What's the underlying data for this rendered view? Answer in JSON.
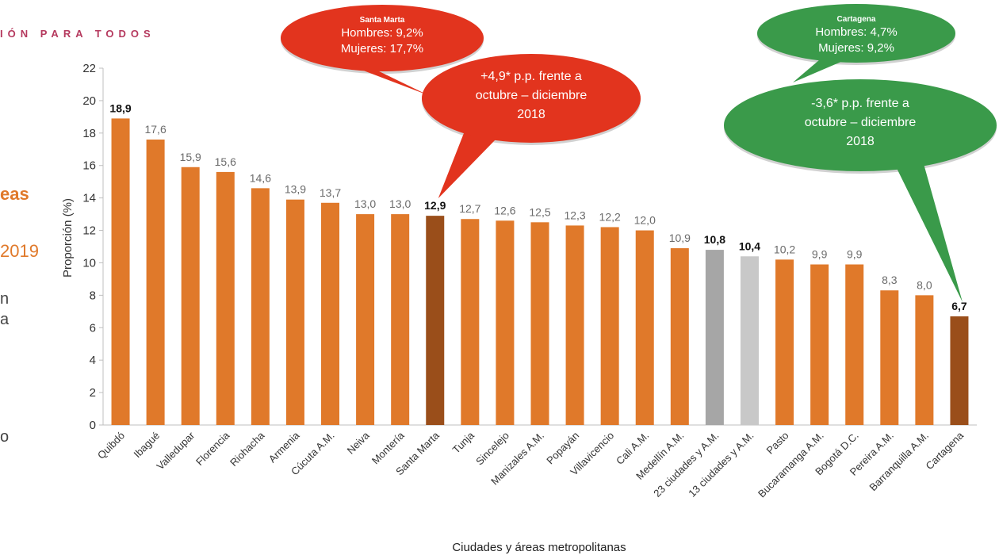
{
  "header": {
    "text": "IÓN PARA TODOS"
  },
  "left_fragments": {
    "heading": "eas",
    "year": "2019",
    "line1": "n",
    "line2": "a",
    "line3": "o"
  },
  "chart_data": {
    "type": "bar",
    "xlabel": "Ciudades y áreas metropolitanas",
    "ylabel": "Proporción (%)",
    "ylim": [
      0,
      22
    ],
    "yticks": [
      0,
      2,
      4,
      6,
      8,
      10,
      12,
      14,
      16,
      18,
      20,
      22
    ],
    "grid": false,
    "categories": [
      "Quibdó",
      "Ibagué",
      "Valledupar",
      "Florencia",
      "Riohacha",
      "Armenia",
      "Cúcuta A.M.",
      "Neiva",
      "Montería",
      "Santa Marta",
      "Tunja",
      "Sincelejo",
      "Manizales A.M.",
      "Popayán",
      "Villavicencio",
      "Cali A.M.",
      "Medellín A.M.",
      "23 ciudades y A.M.",
      "13 ciudades y A.M.",
      "Pasto",
      "Bucaramanga A.M.",
      "Bogotá D.C.",
      "Pereira A.M.",
      "Barranquilla A.M.",
      "Cartagena"
    ],
    "values": [
      18.9,
      17.6,
      15.9,
      15.6,
      14.6,
      13.9,
      13.7,
      13.0,
      13.0,
      12.9,
      12.7,
      12.6,
      12.5,
      12.3,
      12.2,
      12.0,
      10.9,
      10.8,
      10.4,
      10.2,
      9.9,
      9.9,
      8.3,
      8.0,
      6.7
    ],
    "value_labels": [
      "18,9",
      "17,6",
      "15,9",
      "15,6",
      "14,6",
      "13,9",
      "13,7",
      "13,0",
      "13,0",
      "12,9",
      "12,7",
      "12,6",
      "12,5",
      "12,3",
      "12,2",
      "12,0",
      "10,9",
      "10,8",
      "10,4",
      "10,2",
      "9,9",
      "9,9",
      "8,3",
      "8,0",
      "6,7"
    ],
    "bold_labels": [
      0,
      9,
      17,
      18,
      24
    ],
    "bar_colors": {
      "default": "#e0792a",
      "highlight": "#9a4e1a",
      "aggregate_23": "#a6a6a6",
      "aggregate_13": "#c8c8c8"
    },
    "highlight_indices": [
      9,
      24
    ],
    "aggregate_indices": {
      "23": 17,
      "13": 18
    },
    "annotations": [
      {
        "id": "santa-marta-gender",
        "color": "#e2341e",
        "title": "Santa Marta",
        "lines": [
          "Hombres: 9,2%",
          "Mujeres: 17,7%"
        ]
      },
      {
        "id": "santa-marta-change",
        "color": "#e2341e",
        "title": "",
        "lines": [
          "+4,9* p.p. frente a",
          "octubre – diciembre",
          "2018"
        ],
        "target_index": 9
      },
      {
        "id": "cartagena-gender",
        "color": "#3a9a4a",
        "title": "Cartagena",
        "lines": [
          "Hombres: 4,7%",
          "Mujeres: 9,2%"
        ]
      },
      {
        "id": "cartagena-change",
        "color": "#3a9a4a",
        "title": "",
        "lines": [
          "-3,6* p.p. frente a",
          "octubre – diciembre",
          "2018"
        ],
        "target_index": 24
      }
    ]
  }
}
